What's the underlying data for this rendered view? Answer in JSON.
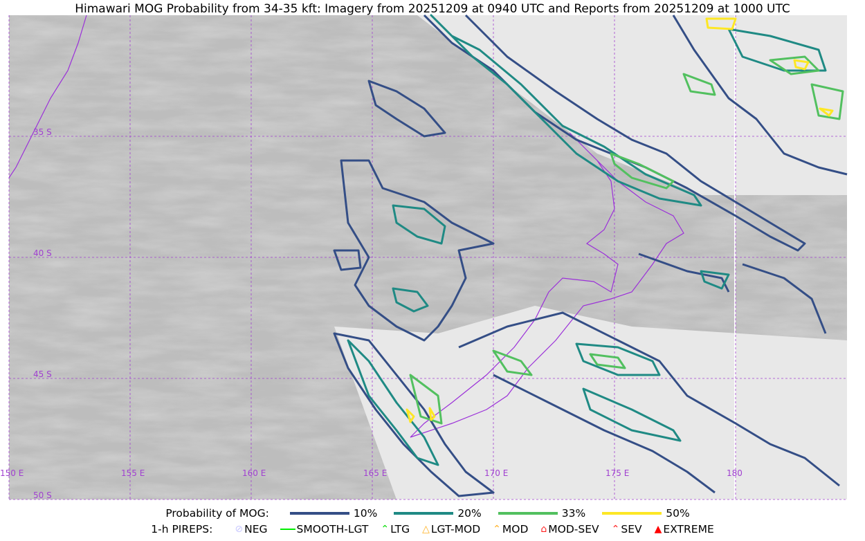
{
  "title": "Himawari MOG Probability from 34-35 kft: Imagery from 20251209 at 0940 UTC and Reports from 20251209 at 1000 UTC",
  "map": {
    "longitude_labels": [
      "150 E",
      "155 E",
      "160 E",
      "165 E",
      "170 E",
      "175 E",
      "180"
    ],
    "latitude_labels": [
      "35 S",
      "40 S",
      "45 S",
      "50 S"
    ],
    "gridline_color": "#a040d0",
    "coastline_color": "#9b30d9"
  },
  "legend": {
    "probability_label": "Probability of MOG:",
    "levels": [
      {
        "label": "10%",
        "color": "#344e86"
      },
      {
        "label": "20%",
        "color": "#1f8a84"
      },
      {
        "label": "33%",
        "color": "#52c05f"
      },
      {
        "label": "50%",
        "color": "#fde725"
      }
    ],
    "pireps_label": "1-h PIREPS:",
    "pireps": [
      {
        "label": "NEG",
        "icon": "neg-circle-icon",
        "color": "#c8c8ff"
      },
      {
        "label": "SMOOTH-LGT",
        "icon": "dash-icon",
        "color": "#00ee00"
      },
      {
        "label": "LTG",
        "icon": "caret-icon",
        "color": "#00dd00"
      },
      {
        "label": "LGT-MOD",
        "icon": "caret-bar-icon",
        "color": "#ffb020"
      },
      {
        "label": "MOD",
        "icon": "caret-icon",
        "color": "#ffb020"
      },
      {
        "label": "MOD-SEV",
        "icon": "double-caret-bar-icon",
        "color": "#ff2020"
      },
      {
        "label": "SEV",
        "icon": "double-caret-icon",
        "color": "#ff2020"
      },
      {
        "label": "EXTREME",
        "icon": "filled-triangle-icon",
        "color": "#ff0000"
      }
    ]
  }
}
